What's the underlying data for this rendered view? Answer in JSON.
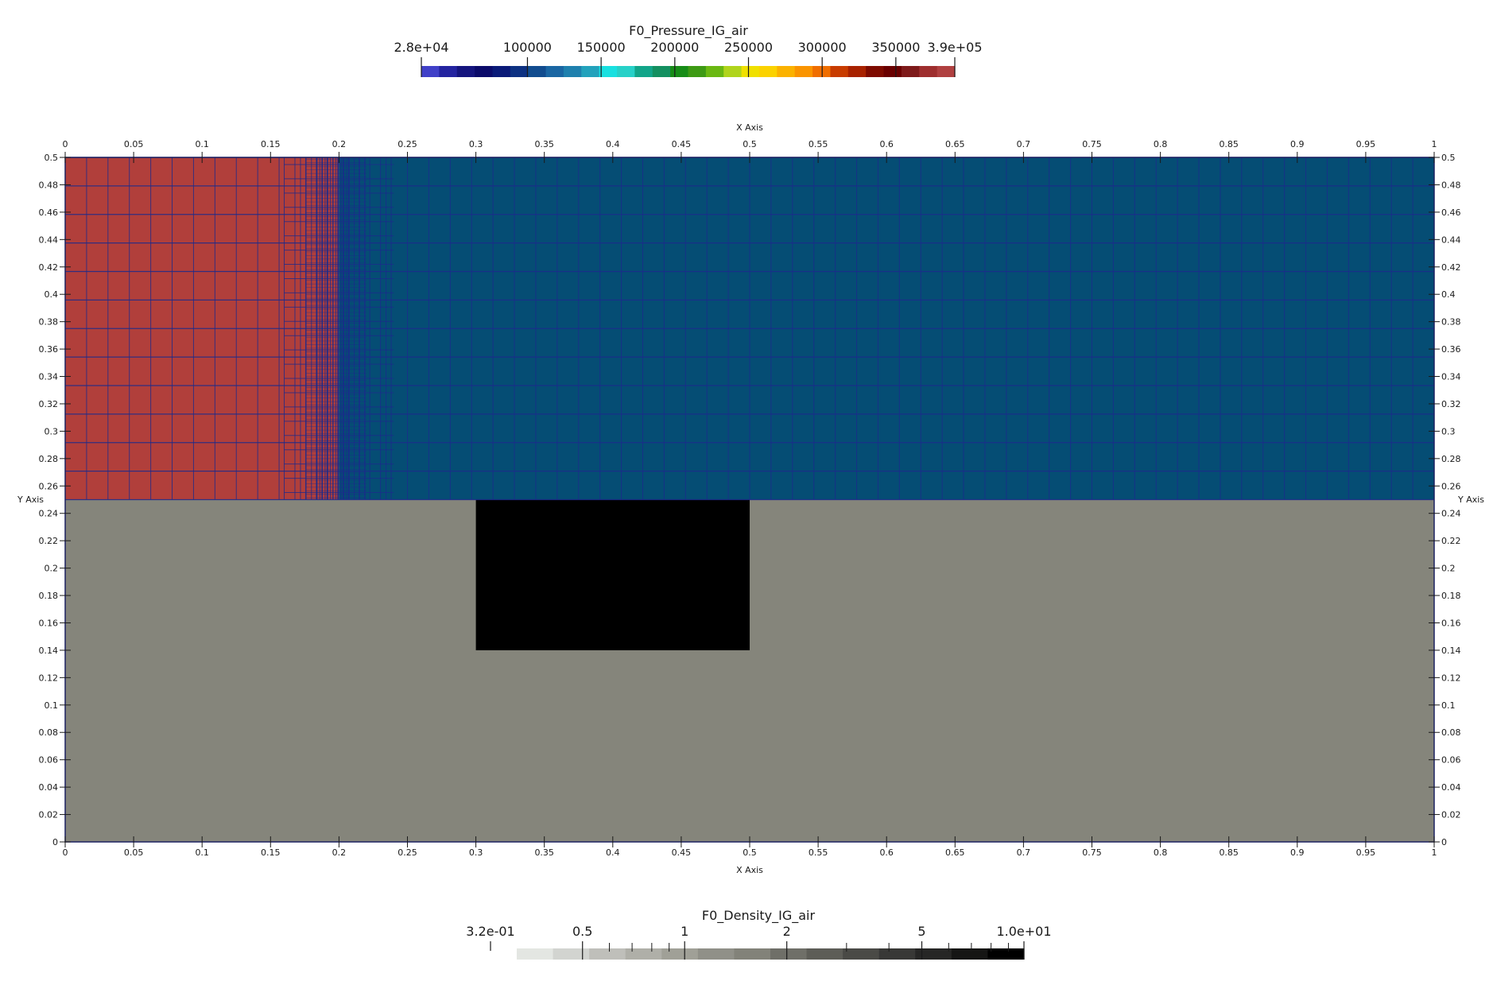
{
  "chart_data": {
    "type": "heatmap",
    "xlabel": "X Axis",
    "ylabel": "Y Axis",
    "xlim": [
      0,
      1
    ],
    "ylim": [
      0,
      0.5
    ],
    "x_ticks": [
      "0",
      "0.05",
      "0.1",
      "0.15",
      "0.2",
      "0.25",
      "0.3",
      "0.35",
      "0.4",
      "0.45",
      "0.5",
      "0.55",
      "0.6",
      "0.65",
      "0.7",
      "0.75",
      "0.8",
      "0.85",
      "0.9",
      "0.95",
      "1"
    ],
    "y_ticks": [
      "0",
      "0.02",
      "0.04",
      "0.06",
      "0.08",
      "0.1",
      "0.12",
      "0.14",
      "0.16",
      "0.18",
      "0.2",
      "0.22",
      "0.24",
      "0.26",
      "0.28",
      "0.3",
      "0.32",
      "0.34",
      "0.36",
      "0.38",
      "0.4",
      "0.42",
      "0.44",
      "0.46",
      "0.48",
      "0.5"
    ],
    "pressure": {
      "title": "F0_Pressure_IG_air",
      "range": [
        28000,
        390000
      ],
      "range_labels": [
        "2.8e+04",
        "3.9e+05"
      ],
      "ticks": [
        100000,
        150000,
        200000,
        250000,
        300000,
        350000
      ],
      "tick_labels": [
        "100000",
        "150000",
        "200000",
        "250000",
        "300000",
        "350000"
      ],
      "colors": [
        "#4040c8",
        "#2424a0",
        "#15157e",
        "#0b0b6a",
        "#0a1a78",
        "#0d3182",
        "#114c8f",
        "#1a66a3",
        "#1f80ae",
        "#23a2bc",
        "#19e0e0",
        "#27d1c8",
        "#12a589",
        "#149060",
        "#178c17",
        "#3d9a14",
        "#6ab812",
        "#b0d41c",
        "#f0e000",
        "#fbd200",
        "#fbb200",
        "#fa9400",
        "#f06e00",
        "#c83c00",
        "#a82200",
        "#7e0b00",
        "#6a0000",
        "#7e1a1a",
        "#9e2e2e",
        "#b04040"
      ],
      "left_region_value": 390000,
      "right_region_value": 100000,
      "left_region_color": "#b13f3b",
      "right_region_color": "#054d74",
      "interface_x": 0.2,
      "mesh_color": "#1c2a8c"
    },
    "density": {
      "title": "F0_Density_IG_air",
      "range": [
        0.32,
        10.0
      ],
      "range_labels": [
        "3.2e-01",
        "1.0e+01"
      ],
      "scale": "log",
      "ticks": [
        0.5,
        1,
        2,
        5
      ],
      "tick_labels": [
        "0.5",
        "1",
        "2",
        "5"
      ],
      "minor_ticks": [
        0.6,
        0.7,
        0.8,
        0.9,
        3,
        4,
        6,
        7,
        8,
        9
      ],
      "colors": [
        "#e3e6e2",
        "#d2d4d0",
        "#bfbfba",
        "#afafa8",
        "#a0a097",
        "#909088",
        "#828279",
        "#6f6f68",
        "#5d5d57",
        "#4a4a46",
        "#383836",
        "#262625",
        "#151514",
        "#000000"
      ],
      "ground_color": "#85857b",
      "block_color": "#000000"
    },
    "regions": [
      {
        "name": "ground",
        "x": [
          0,
          1
        ],
        "y": [
          0,
          0.25
        ],
        "density": 1.5
      },
      {
        "name": "block",
        "x": [
          0.3,
          0.5
        ],
        "y": [
          0.14,
          0.25
        ],
        "density": 10.0
      }
    ]
  }
}
